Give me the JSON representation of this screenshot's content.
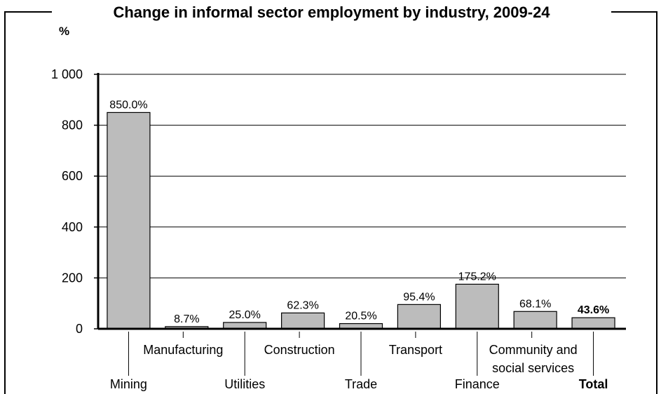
{
  "chart_data": {
    "type": "bar",
    "title": "Change in informal sector employment by industry, 2009-24",
    "ylabel": "%",
    "xlabel": "",
    "ylim": [
      0,
      1000
    ],
    "yticks": [
      0,
      200,
      400,
      600,
      800,
      1000
    ],
    "ytick_labels": [
      "0",
      "200",
      "400",
      "600",
      "800",
      "1 000"
    ],
    "grid": true,
    "bar_color": "#bcbcbc",
    "categories": [
      {
        "label": "Mining",
        "lines": [
          "Mining"
        ],
        "value": 850.0,
        "value_label": "850.0%",
        "bold": false
      },
      {
        "label": "Manufacturing",
        "lines": [
          "Manufacturing"
        ],
        "value": 8.7,
        "value_label": "8.7%",
        "bold": false
      },
      {
        "label": "Utilities",
        "lines": [
          "Utilities"
        ],
        "value": 25.0,
        "value_label": "25.0%",
        "bold": false
      },
      {
        "label": "Construction",
        "lines": [
          "Construction"
        ],
        "value": 62.3,
        "value_label": "62.3%",
        "bold": false
      },
      {
        "label": "Trade",
        "lines": [
          "Trade"
        ],
        "value": 20.5,
        "value_label": "20.5%",
        "bold": false
      },
      {
        "label": "Transport",
        "lines": [
          "Transport"
        ],
        "value": 95.4,
        "value_label": "95.4%",
        "bold": false
      },
      {
        "label": "Finance",
        "lines": [
          "Finance"
        ],
        "value": 175.2,
        "value_label": "175.2%",
        "bold": false
      },
      {
        "label": "Community and social services",
        "lines": [
          "Community and",
          "social services"
        ],
        "value": 68.1,
        "value_label": "68.1%",
        "bold": false
      },
      {
        "label": "Total",
        "lines": [
          "Total"
        ],
        "value": 43.6,
        "value_label": "43.6%",
        "bold": true
      }
    ]
  }
}
